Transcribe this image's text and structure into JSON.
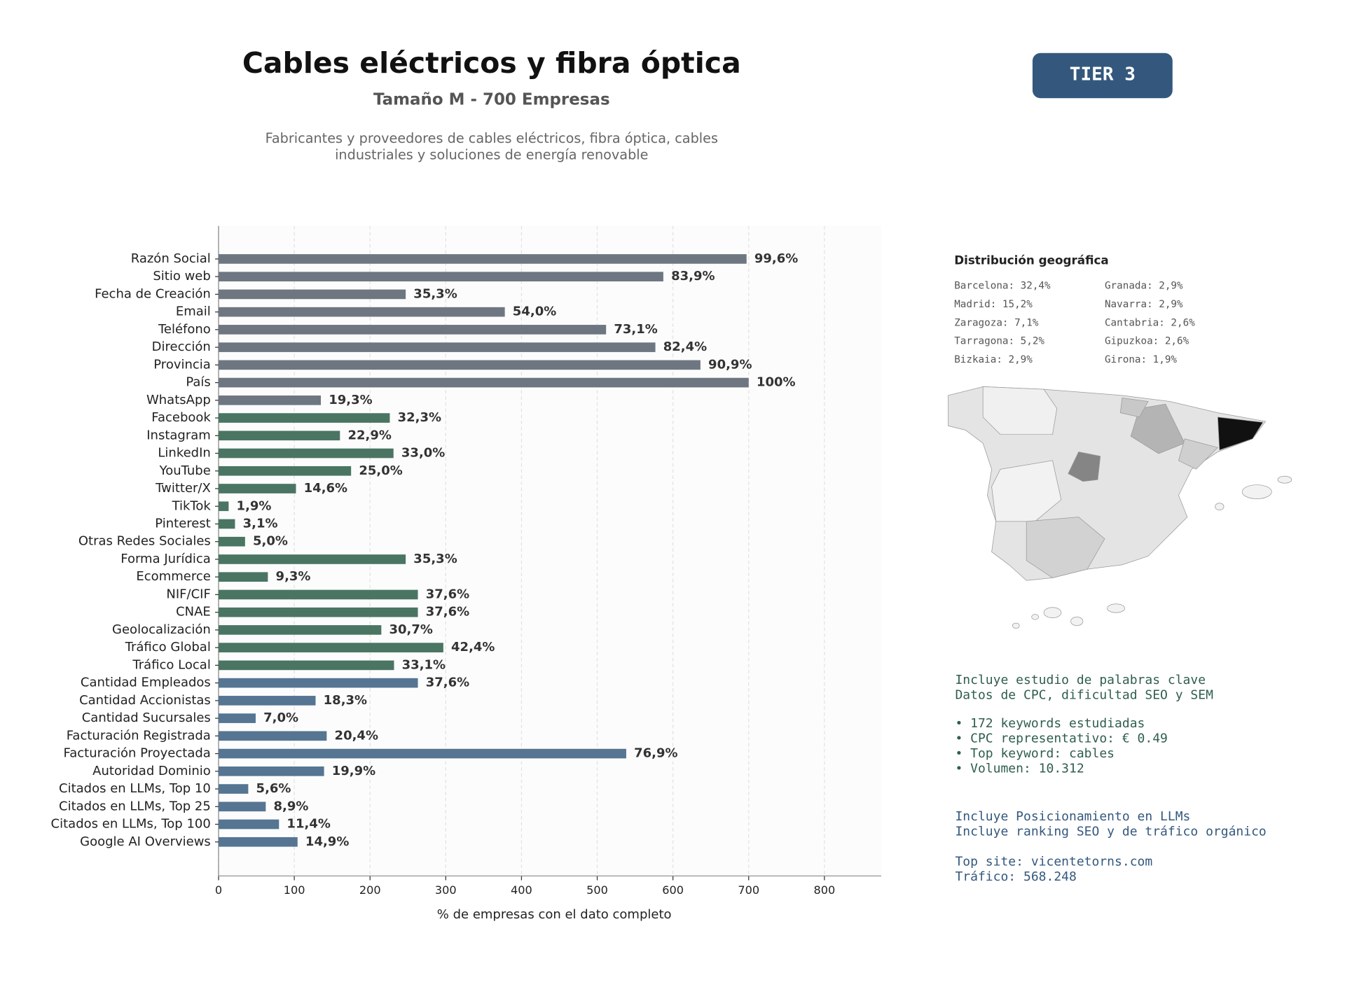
{
  "header": {
    "title": "Cables eléctricos y fibra óptica",
    "subtitle": "Tamaño M - 700 Empresas",
    "description": [
      "Fabricantes y proveedores de cables eléctricos, fibra óptica, cables",
      "industriales y soluciones de energía renovable"
    ],
    "badge": "TIER 3"
  },
  "chart_data": {
    "type": "bar",
    "orientation": "horizontal",
    "categories": [
      "Razón Social",
      "Sitio web",
      "Fecha de Creación",
      "Email",
      "Teléfono",
      "Dirección",
      "Provincia",
      "País",
      "WhatsApp",
      "Facebook",
      "Instagram",
      "LinkedIn",
      "YouTube",
      "Twitter/X",
      "TikTok",
      "Pinterest",
      "Otras Redes Sociales",
      "Forma Jurídica",
      "Ecommerce",
      "NIF/CIF",
      "CNAE",
      "Geolocalización",
      "Tráfico Global",
      "Tráfico Local",
      "Cantidad Empleados",
      "Cantidad Accionistas",
      "Cantidad Sucursales",
      "Facturación Registrada",
      "Facturación Proyectada",
      "Autoridad Dominio",
      "Citados en LLMs, Top 10",
      "Citados en LLMs, Top 25",
      "Citados en LLMs, Top 100",
      "Google AI Overviews"
    ],
    "values": [
      697.2,
      587.3,
      247.1,
      378,
      511.7,
      576.8,
      636.3,
      700,
      135.1,
      226.1,
      160.3,
      231,
      175,
      102.2,
      13.3,
      21.7,
      35,
      247.1,
      65.1,
      263.2,
      263.2,
      214.9,
      296.8,
      231.7,
      263.2,
      128.1,
      49,
      142.8,
      538.3,
      139.3,
      39.2,
      62.3,
      79.8,
      104.3
    ],
    "value_labels": [
      "99,6%",
      "83,9%",
      "35,3%",
      "54,0%",
      "73,1%",
      "82,4%",
      "90,9%",
      "100%",
      "19,3%",
      "32,3%",
      "22,9%",
      "33,0%",
      "25,0%",
      "14,6%",
      "1,9%",
      "3,1%",
      "5,0%",
      "35,3%",
      "9,3%",
      "37,6%",
      "37,6%",
      "30,7%",
      "42,4%",
      "33,1%",
      "37,6%",
      "18,3%",
      "7,0%",
      "20,4%",
      "76,9%",
      "19,9%",
      "5,6%",
      "8,9%",
      "11,4%",
      "14,9%"
    ],
    "colors": [
      "#6e7781",
      "#6e7781",
      "#6e7781",
      "#6e7781",
      "#6e7781",
      "#6e7781",
      "#6e7781",
      "#6e7781",
      "#6e7781",
      "#4a7563",
      "#4a7563",
      "#4a7563",
      "#4a7563",
      "#4a7563",
      "#4a7563",
      "#4a7563",
      "#4a7563",
      "#4a7563",
      "#4a7563",
      "#4a7563",
      "#4a7563",
      "#4a7563",
      "#4a7563",
      "#4a7563",
      "#557592",
      "#557592",
      "#557592",
      "#557592",
      "#557592",
      "#557592",
      "#557592",
      "#557592",
      "#557592",
      "#557592"
    ],
    "xlim": [
      0,
      875
    ],
    "xticks": [
      0,
      100,
      200,
      300,
      400,
      500,
      600,
      700,
      800
    ],
    "xlabel": "% de empresas con el dato completo",
    "grid": true
  },
  "geo": {
    "title": "Distribución geográfica",
    "items": [
      "Barcelona: 32,4%",
      "Madrid: 15,2%",
      "Zaragoza: 7,1%",
      "Tarragona: 5,2%",
      "Bizkaia: 2,9%",
      "Granada: 2,9%",
      "Navarra: 2,9%",
      "Cantabria: 2,6%",
      "Gipuzkoa: 2,6%",
      "Girona: 1,9%"
    ]
  },
  "notes": {
    "keywords": [
      "Incluye estudio de palabras clave",
      "Datos de CPC, dificultad SEO y SEM"
    ],
    "keyword_stats": [
      "• 172 keywords estudiadas",
      "• CPC representativo: € 0.49",
      "• Top keyword: cables",
      "• Volumen: 10.312"
    ],
    "llm": [
      "Incluye Posicionamiento en LLMs",
      "Incluye ranking SEO y de tráfico orgánico"
    ],
    "site": [
      "Top site: vicentetorns.com",
      "Tráfico: 568.248"
    ]
  }
}
